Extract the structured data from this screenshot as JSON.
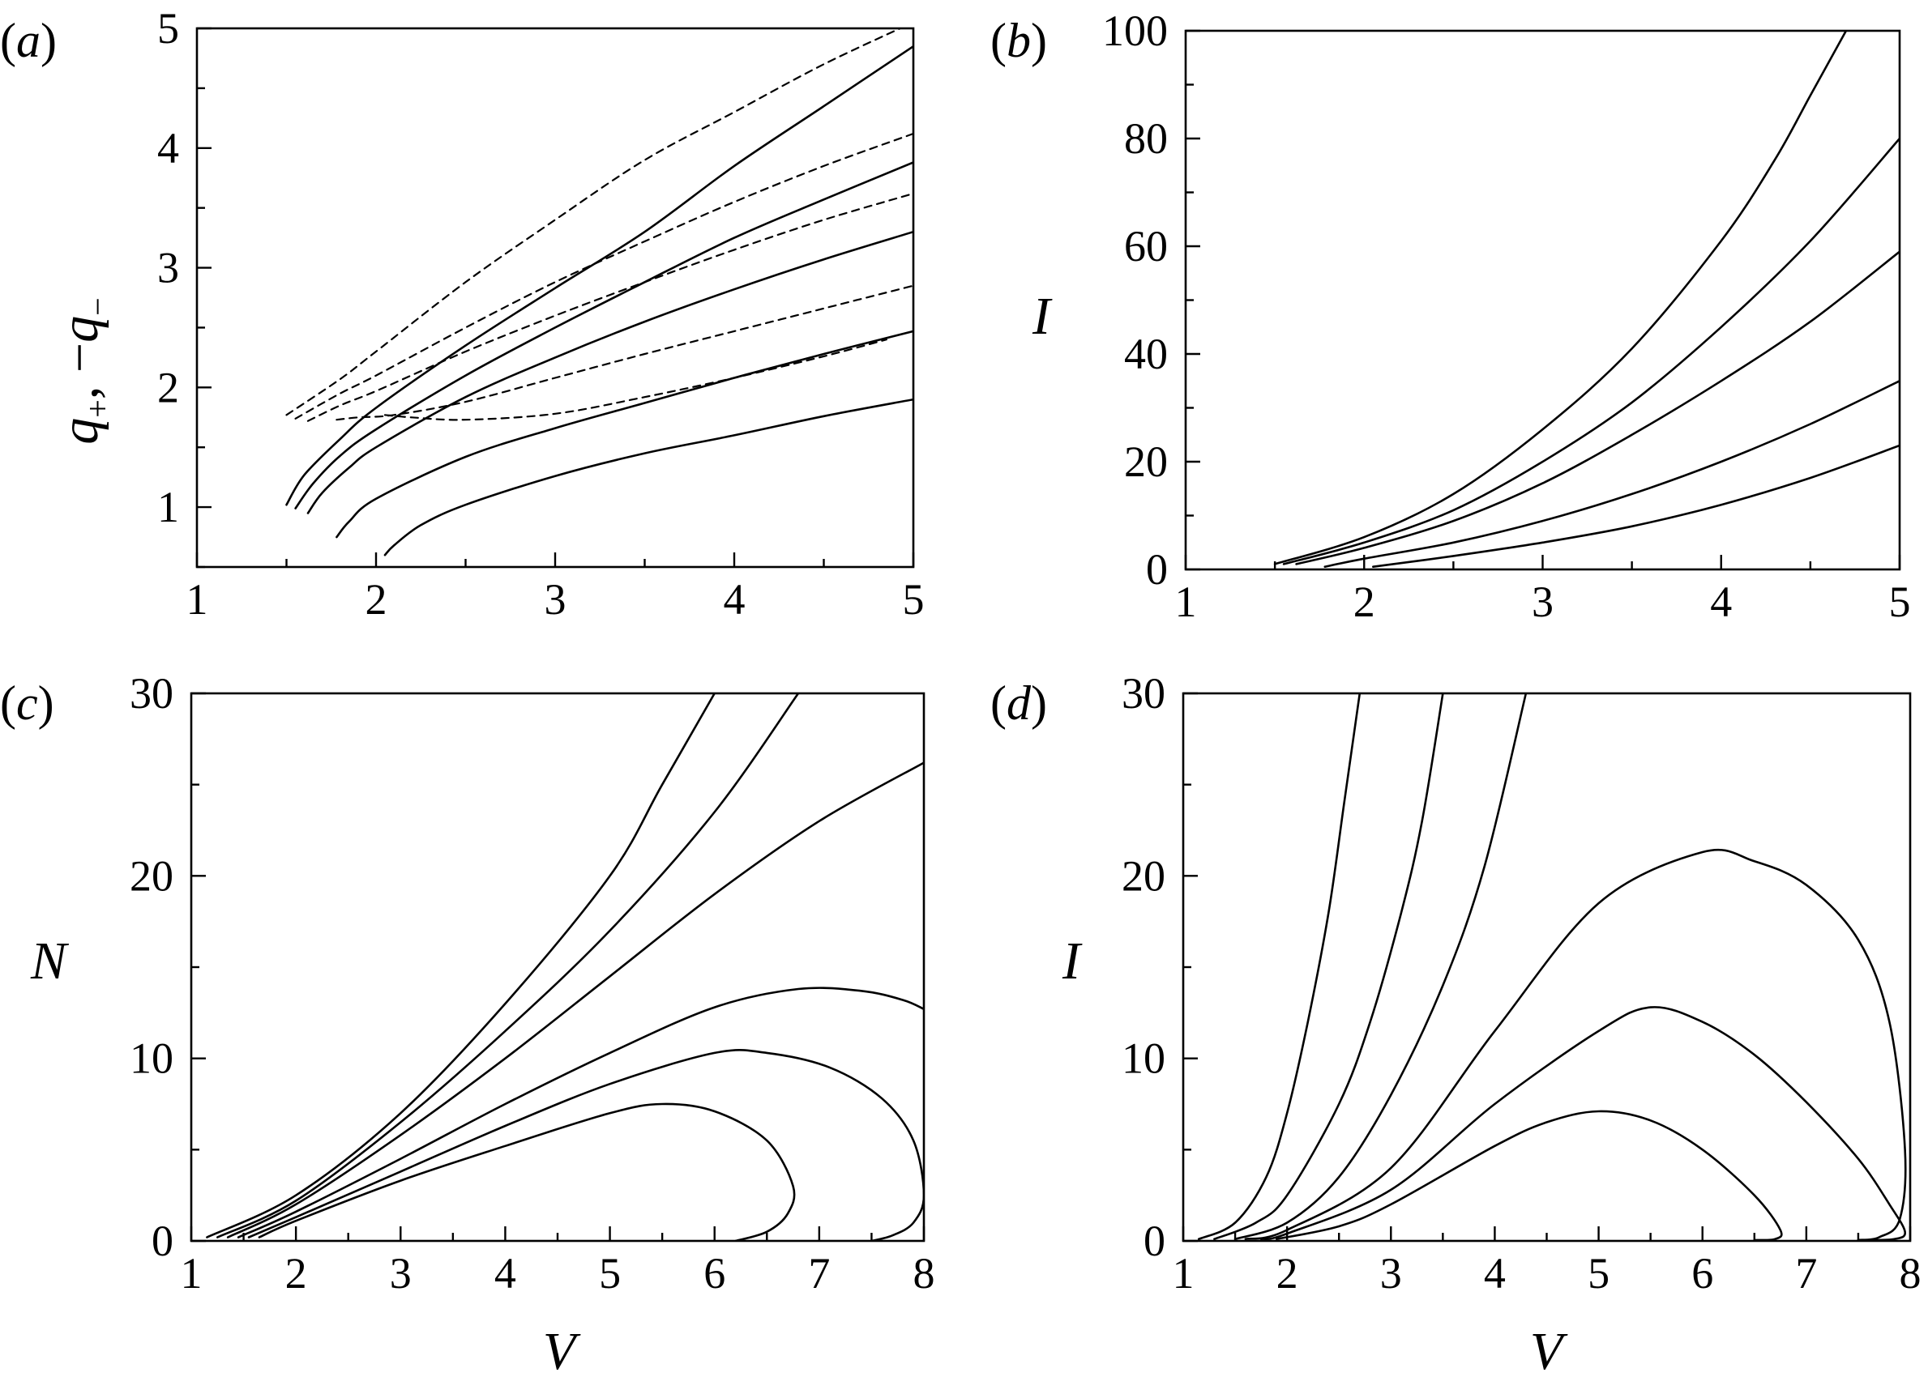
{
  "chart_data": [
    {
      "panel": "(a)",
      "type": "line",
      "xlabel": "",
      "ylabel": "q+, −q−",
      "xlim": [
        1,
        5
      ],
      "ylim": [
        0.5,
        5
      ],
      "xticks": [
        1,
        2,
        3,
        4,
        5
      ],
      "yticks": [
        1,
        2,
        3,
        4,
        5
      ],
      "series": [
        {
          "style": "solid",
          "x": [
            1.5,
            1.6,
            1.8,
            2,
            2.5,
            3,
            3.5,
            4,
            4.5,
            5
          ],
          "y": [
            1.02,
            1.27,
            1.57,
            1.83,
            2.35,
            2.83,
            3.3,
            3.85,
            4.35,
            4.85
          ]
        },
        {
          "style": "solid",
          "x": [
            1.55,
            1.65,
            1.8,
            2,
            2.5,
            3,
            3.5,
            4,
            4.5,
            5
          ],
          "y": [
            0.99,
            1.2,
            1.43,
            1.65,
            2.1,
            2.5,
            2.88,
            3.25,
            3.57,
            3.88
          ]
        },
        {
          "style": "solid",
          "x": [
            1.62,
            1.7,
            1.85,
            2,
            2.5,
            3,
            3.5,
            4,
            4.5,
            5
          ],
          "y": [
            0.95,
            1.12,
            1.33,
            1.5,
            1.92,
            2.25,
            2.55,
            2.82,
            3.07,
            3.3
          ]
        },
        {
          "style": "solid",
          "x": [
            1.78,
            1.85,
            2,
            2.5,
            3,
            3.5,
            4,
            4.5,
            5
          ],
          "y": [
            0.75,
            0.88,
            1.07,
            1.42,
            1.66,
            1.87,
            2.08,
            2.28,
            2.47
          ]
        },
        {
          "style": "solid",
          "x": [
            2.05,
            2.1,
            2.25,
            2.5,
            3,
            3.5,
            4,
            4.5,
            5
          ],
          "y": [
            0.6,
            0.68,
            0.85,
            1.02,
            1.26,
            1.45,
            1.6,
            1.76,
            1.9
          ]
        },
        {
          "style": "dashed",
          "x": [
            1.5,
            1.8,
            2,
            2.5,
            3,
            3.5,
            4,
            4.5,
            5
          ],
          "y": [
            1.77,
            2.07,
            2.3,
            2.88,
            3.4,
            3.9,
            4.3,
            4.7,
            5.05
          ]
        },
        {
          "style": "dashed",
          "x": [
            1.55,
            1.8,
            2,
            2.5,
            3,
            3.5,
            4,
            4.5,
            5
          ],
          "y": [
            1.74,
            1.95,
            2.1,
            2.5,
            2.88,
            3.22,
            3.55,
            3.85,
            4.12
          ]
        },
        {
          "style": "dashed",
          "x": [
            1.62,
            1.8,
            2,
            2.5,
            3,
            3.5,
            4,
            4.5,
            5
          ],
          "y": [
            1.72,
            1.85,
            1.97,
            2.3,
            2.6,
            2.88,
            3.15,
            3.4,
            3.62
          ]
        },
        {
          "style": "dashed",
          "x": [
            1.78,
            1.9,
            2.1,
            2.5,
            3,
            3.5,
            4,
            4.5,
            5
          ],
          "y": [
            1.73,
            1.75,
            1.77,
            1.88,
            2.08,
            2.28,
            2.47,
            2.66,
            2.85
          ]
        },
        {
          "style": "dashed",
          "x": [
            2.05,
            2.2,
            2.5,
            3,
            3.5,
            4,
            4.5,
            4.85
          ],
          "y": [
            1.77,
            1.75,
            1.73,
            1.78,
            1.92,
            2.08,
            2.26,
            2.4
          ]
        }
      ]
    },
    {
      "panel": "(b)",
      "type": "line",
      "xlabel": "",
      "ylabel": "I",
      "xlim": [
        1,
        5
      ],
      "ylim": [
        0,
        100
      ],
      "xticks": [
        1,
        2,
        3,
        4,
        5
      ],
      "yticks": [
        0,
        20,
        40,
        60,
        80,
        100
      ],
      "series": [
        {
          "style": "solid",
          "x": [
            1.5,
            2,
            2.5,
            3,
            3.5,
            4,
            4.3,
            4.5,
            4.7
          ],
          "y": [
            1,
            6,
            14,
            26,
            41,
            61,
            76,
            88,
            100
          ]
        },
        {
          "style": "solid",
          "x": [
            1.55,
            2,
            2.5,
            3,
            3.5,
            4,
            4.5,
            5
          ],
          "y": [
            1,
            5,
            11,
            20,
            31,
            45,
            61,
            80
          ]
        },
        {
          "style": "solid",
          "x": [
            1.62,
            2,
            2.5,
            3,
            3.5,
            4,
            4.5,
            5
          ],
          "y": [
            1,
            4,
            9,
            16,
            25,
            35,
            46,
            59
          ]
        },
        {
          "style": "solid",
          "x": [
            1.78,
            2,
            2.5,
            3,
            3.5,
            4,
            4.5,
            5
          ],
          "y": [
            0.5,
            2,
            5,
            9,
            14,
            20,
            27,
            35
          ]
        },
        {
          "style": "solid",
          "x": [
            2.05,
            2.5,
            3,
            3.5,
            4,
            4.5,
            5
          ],
          "y": [
            0.5,
            2.5,
            5,
            8,
            12,
            17,
            23
          ]
        }
      ]
    },
    {
      "panel": "(c)",
      "type": "line",
      "xlabel": "V",
      "ylabel": "N",
      "xlim": [
        1,
        8
      ],
      "ylim": [
        0,
        30
      ],
      "xticks": [
        1,
        2,
        3,
        4,
        5,
        6,
        7,
        8
      ],
      "yticks": [
        0,
        10,
        20,
        30
      ],
      "series": [
        {
          "style": "solid",
          "x": [
            1.15,
            2,
            3,
            4,
            5,
            5.5,
            6
          ],
          "y": [
            0.2,
            2.5,
            7,
            13,
            20,
            25,
            30
          ]
        },
        {
          "style": "solid",
          "x": [
            1.25,
            2,
            3,
            4,
            5,
            6,
            6.8
          ],
          "y": [
            0.2,
            2.2,
            6.5,
            11.5,
            17,
            23.5,
            30
          ]
        },
        {
          "style": "solid",
          "x": [
            1.35,
            2,
            3,
            4,
            5,
            6,
            7,
            8
          ],
          "y": [
            0.2,
            2,
            5.8,
            10,
            14.5,
            19,
            23,
            26.2
          ]
        },
        {
          "style": "solid",
          "x": [
            1.45,
            2,
            3,
            4,
            5,
            6,
            6.8,
            7.4,
            7.8,
            8
          ],
          "y": [
            0.2,
            1.6,
            4.5,
            7.5,
            10.3,
            12.8,
            13.8,
            13.7,
            13.2,
            12.7
          ]
        },
        {
          "style": "solid",
          "x": [
            1.55,
            2,
            3,
            4,
            5,
            6,
            6.5,
            7.1,
            7.6,
            7.9,
            8,
            7.9,
            7.7,
            7.5
          ],
          "y": [
            0.2,
            1.3,
            3.8,
            6.3,
            8.6,
            10.3,
            10.3,
            9.5,
            7.8,
            5.5,
            2.5,
            1,
            0.3,
            0
          ]
        },
        {
          "style": "solid",
          "x": [
            1.65,
            2,
            3,
            4,
            5,
            5.5,
            6,
            6.5,
            6.75,
            6.7,
            6.5,
            6.2
          ],
          "y": [
            0.2,
            1.1,
            3.3,
            5.2,
            7,
            7.5,
            7.1,
            5.5,
            3,
            1.5,
            0.5,
            0
          ]
        }
      ]
    },
    {
      "panel": "(d)",
      "type": "line",
      "xlabel": "V",
      "ylabel": "I",
      "xlim": [
        1,
        8
      ],
      "ylim": [
        0,
        30
      ],
      "xticks": [
        1,
        2,
        3,
        4,
        5,
        6,
        7,
        8
      ],
      "yticks": [
        0,
        10,
        20,
        30
      ],
      "series": [
        {
          "style": "solid",
          "x": [
            1.15,
            1.5,
            1.8,
            2,
            2.2,
            2.4,
            2.55,
            2.7
          ],
          "y": [
            0.1,
            1,
            3.5,
            7,
            12,
            18,
            24,
            30
          ]
        },
        {
          "style": "solid",
          "x": [
            1.3,
            1.7,
            2,
            2.5,
            2.8,
            3.1,
            3.3,
            3.5
          ],
          "y": [
            0.1,
            1,
            2.5,
            7.5,
            12,
            18,
            23,
            30
          ]
        },
        {
          "style": "solid",
          "x": [
            1.5,
            2,
            2.5,
            3,
            3.5,
            3.9,
            4.3
          ],
          "y": [
            0.1,
            1,
            3.5,
            8,
            14,
            20.5,
            30
          ]
        },
        {
          "style": "solid",
          "x": [
            1.6,
            2,
            3,
            4,
            5,
            6,
            6.5,
            7,
            7.5,
            7.8,
            7.95,
            7.9,
            7.7,
            7.5
          ],
          "y": [
            0.1,
            0.6,
            4,
            11.5,
            18.5,
            21.3,
            20.8,
            19.5,
            16.5,
            12,
            5,
            1.2,
            0.2,
            0.05
          ]
        },
        {
          "style": "solid",
          "x": [
            1.75,
            2,
            3,
            4,
            5,
            5.5,
            6,
            6.5,
            7,
            7.5,
            7.8,
            7.95,
            7.85,
            7.6
          ],
          "y": [
            0.1,
            0.4,
            2.8,
            7.5,
            11.5,
            12.8,
            12,
            10.2,
            7.6,
            4.5,
            2,
            0.5,
            0.1,
            0.05
          ]
        },
        {
          "style": "solid",
          "x": [
            1.9,
            2.5,
            3,
            4,
            4.5,
            5,
            5.5,
            6,
            6.5,
            6.75,
            6.7,
            6.5
          ],
          "y": [
            0.1,
            0.8,
            2,
            5.2,
            6.5,
            7.1,
            6.6,
            5,
            2.5,
            0.6,
            0.1,
            0.05
          ]
        }
      ]
    }
  ]
}
